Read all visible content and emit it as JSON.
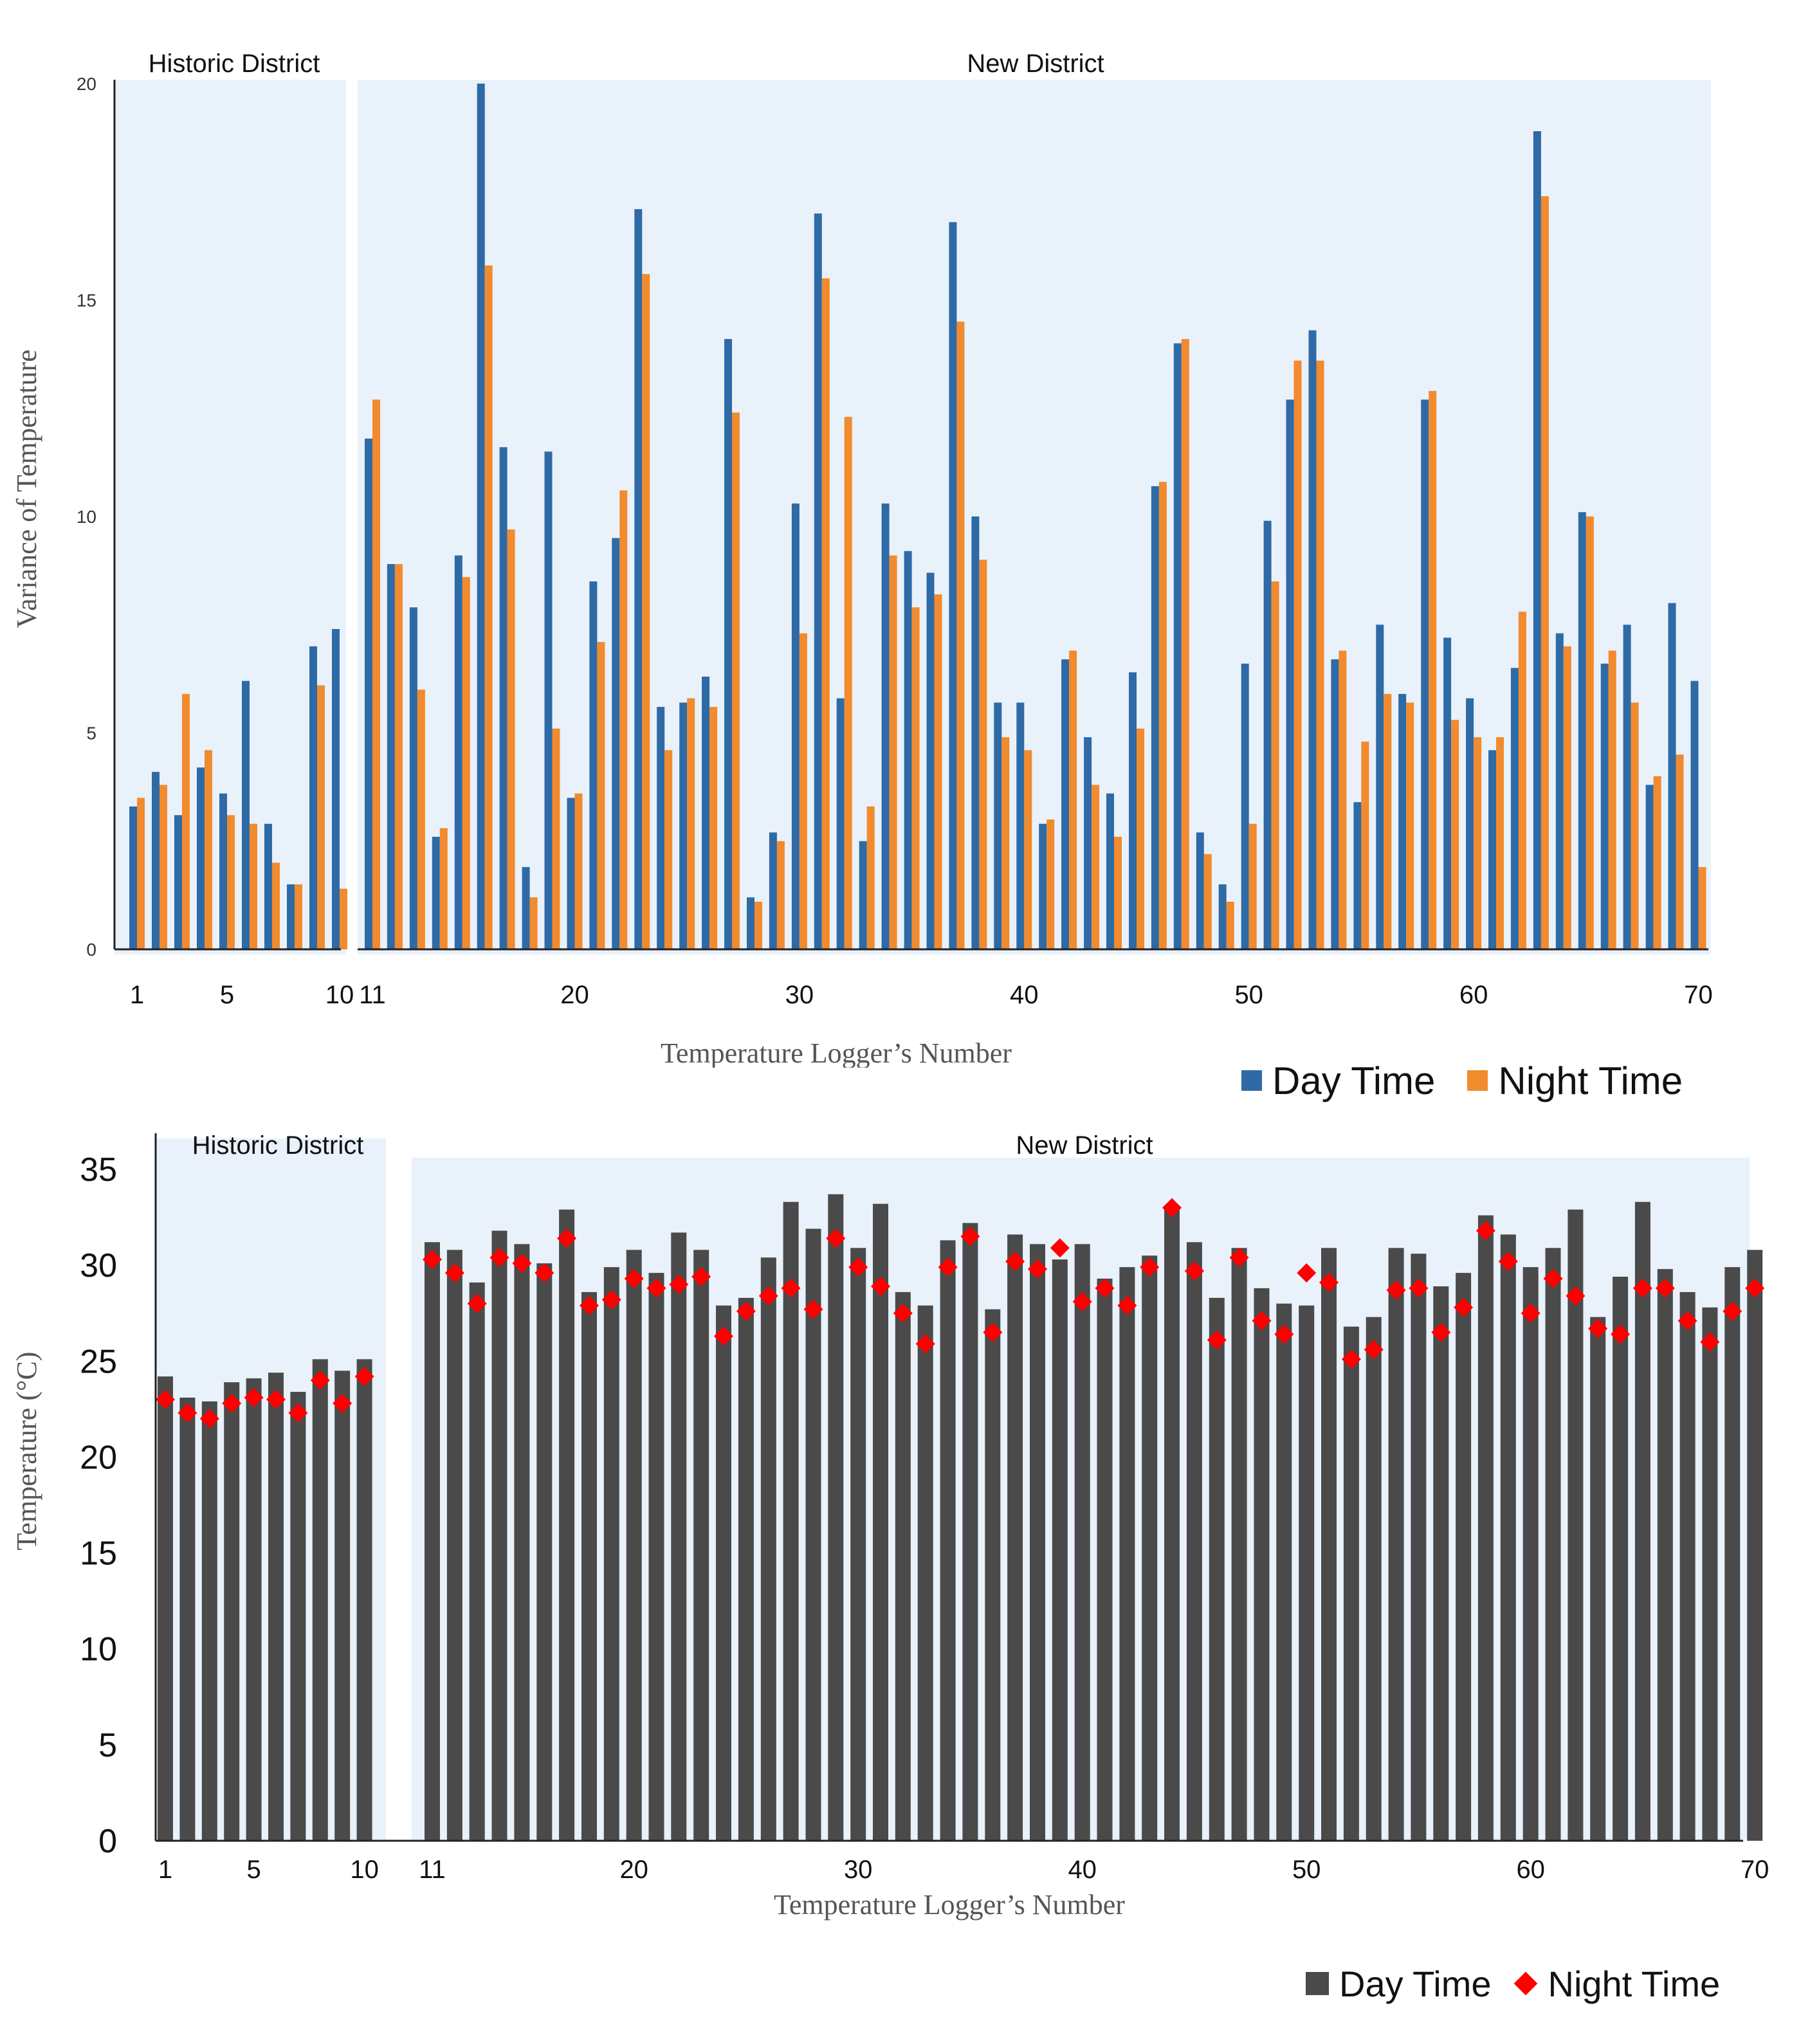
{
  "colors": {
    "panel_bg": "#e9f1fa",
    "day_blue": "#2e6aa6",
    "night_orange": "#f28a2e",
    "day_gray": "#4a4a4a",
    "night_red": "#ff0000",
    "axis": "#222222",
    "label_gray": "#555555"
  },
  "chart_data": [
    {
      "type": "bar",
      "title": "",
      "ylabel": "Variance of Temperature",
      "xlabel": "Temperature Logger’s Number",
      "ylim": [
        0,
        20
      ],
      "yticks": [
        "0",
        "5",
        "10",
        "15",
        "20"
      ],
      "xtick_labels": [
        "1",
        "5",
        "10",
        "11",
        "20",
        "30",
        "40",
        "50",
        "60",
        "70"
      ],
      "xtick_positions": [
        1,
        5,
        10,
        11,
        20,
        30,
        40,
        50,
        60,
        70
      ],
      "regions": [
        {
          "name": "Historic District",
          "from": 1,
          "to": 10
        },
        {
          "name": "New District",
          "from": 11,
          "to": 70
        }
      ],
      "legend": [
        "Day Time",
        "Night Time"
      ],
      "series": [
        {
          "name": "Day Time",
          "values": [
            3.3,
            4.1,
            3.1,
            4.2,
            3.6,
            6.2,
            2.9,
            1.5,
            7.0,
            7.4,
            11.8,
            8.9,
            7.9,
            2.6,
            9.1,
            20.0,
            11.6,
            1.9,
            11.5,
            3.5,
            8.5,
            9.5,
            17.1,
            5.6,
            5.7,
            6.3,
            14.1,
            1.2,
            2.7,
            10.3,
            17.0,
            5.8,
            2.5,
            10.3,
            9.2,
            8.7,
            16.8,
            10.0,
            5.7,
            5.7,
            2.9,
            6.7,
            4.9,
            3.6,
            6.4,
            10.7,
            14.0,
            2.7,
            1.5,
            6.6,
            9.9,
            12.7,
            14.3,
            6.7,
            3.4,
            7.5,
            5.9,
            12.7,
            7.2,
            5.8,
            4.6,
            6.5,
            18.9,
            7.3,
            10.1,
            6.6,
            7.5,
            3.8,
            8.0,
            6.2
          ]
        },
        {
          "name": "Night Time",
          "values": [
            3.5,
            3.8,
            5.9,
            4.6,
            3.1,
            2.9,
            2.0,
            1.5,
            6.1,
            1.4,
            12.7,
            8.9,
            6.0,
            2.8,
            8.6,
            15.8,
            9.7,
            1.2,
            5.1,
            3.6,
            7.1,
            10.6,
            15.6,
            4.6,
            5.8,
            5.6,
            12.4,
            1.1,
            2.5,
            7.3,
            15.5,
            12.3,
            3.3,
            9.1,
            7.9,
            8.2,
            14.5,
            9.0,
            4.9,
            4.6,
            3.0,
            6.9,
            3.8,
            2.6,
            5.1,
            10.8,
            14.1,
            2.2,
            1.1,
            2.9,
            8.5,
            13.6,
            13.6,
            6.9,
            4.8,
            5.9,
            5.7,
            12.9,
            5.3,
            4.9,
            4.9,
            7.8,
            17.4,
            7.0,
            10.0,
            6.9,
            5.7,
            4.0,
            4.5,
            1.9
          ]
        }
      ]
    },
    {
      "type": "bar",
      "title": "",
      "ylabel": "Temperature (°C)",
      "xlabel": "Temperature Logger’s Number",
      "ylim": [
        0,
        35
      ],
      "yticks": [
        "0",
        "5",
        "10",
        "15",
        "20",
        "25",
        "30",
        "35"
      ],
      "xtick_labels": [
        "1",
        "5",
        "10",
        "11",
        "20",
        "30",
        "40",
        "50",
        "60",
        "70"
      ],
      "xtick_positions": [
        1,
        5,
        10,
        11,
        20,
        30,
        40,
        50,
        60,
        70
      ],
      "regions": [
        {
          "name": "Historic District",
          "from": 1,
          "to": 10
        },
        {
          "name": "New District",
          "from": 11,
          "to": 70
        }
      ],
      "legend": [
        "Day Time",
        "Night Time"
      ],
      "series": [
        {
          "name": "Day Time",
          "values": [
            24.2,
            23.1,
            22.9,
            23.9,
            24.1,
            24.4,
            23.4,
            25.1,
            24.5,
            25.1,
            31.2,
            30.8,
            29.1,
            31.8,
            31.1,
            30.1,
            32.9,
            28.6,
            29.9,
            30.8,
            29.6,
            31.7,
            30.8,
            27.9,
            28.3,
            30.4,
            33.3,
            31.9,
            33.7,
            30.9,
            33.2,
            28.6,
            27.9,
            31.3,
            32.2,
            27.7,
            31.6,
            31.1,
            30.3,
            31.1,
            29.3,
            29.9,
            30.5,
            33.1,
            31.2,
            28.3,
            30.9,
            28.8,
            28.0,
            27.9,
            30.9,
            26.8,
            27.3,
            30.9,
            30.6,
            28.9,
            29.6,
            32.6,
            31.6,
            29.9,
            30.9,
            32.9,
            27.3,
            29.4,
            33.3,
            29.8,
            28.6,
            27.8,
            29.9,
            30.8
          ]
        },
        {
          "name": "Night Time",
          "values": [
            23.0,
            22.3,
            22.0,
            22.8,
            23.1,
            23.0,
            22.3,
            24.0,
            22.8,
            24.2,
            30.3,
            29.6,
            28.0,
            30.4,
            30.1,
            29.6,
            31.4,
            27.9,
            28.2,
            29.3,
            28.8,
            29.0,
            29.4,
            26.3,
            27.6,
            28.4,
            28.8,
            27.7,
            31.4,
            29.9,
            28.9,
            27.5,
            25.9,
            29.9,
            31.5,
            26.5,
            30.2,
            29.8,
            30.9,
            28.1,
            28.8,
            27.9,
            29.9,
            33.0,
            29.7,
            26.1,
            30.4,
            27.1,
            26.4,
            29.6,
            29.1,
            25.1,
            25.6,
            28.7,
            28.8,
            26.5,
            27.8,
            31.8,
            30.2,
            27.5,
            29.3,
            28.4,
            26.7,
            26.4,
            28.8,
            28.8,
            27.1,
            26.0,
            27.6,
            28.8
          ]
        }
      ]
    }
  ]
}
